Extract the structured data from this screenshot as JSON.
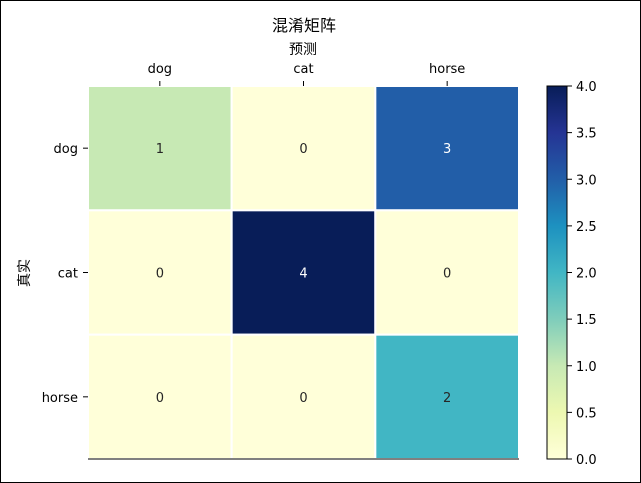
{
  "chart_data": {
    "type": "heatmap",
    "title": "混淆矩阵",
    "xlabel": "预测",
    "ylabel": "真实",
    "x_categories": [
      "dog",
      "cat",
      "horse"
    ],
    "y_categories": [
      "dog",
      "cat",
      "horse"
    ],
    "values": [
      [
        1,
        0,
        3
      ],
      [
        0,
        4,
        0
      ],
      [
        0,
        0,
        2
      ]
    ],
    "value_range": [
      0.0,
      4.0
    ],
    "colormap": "YlGnBu",
    "colorbar_ticks": [
      "0.0",
      "0.5",
      "1.0",
      "1.5",
      "2.0",
      "2.5",
      "3.0",
      "3.5",
      "4.0"
    ],
    "xaxis_position": "top",
    "cell_border_color": "#ffffff"
  }
}
